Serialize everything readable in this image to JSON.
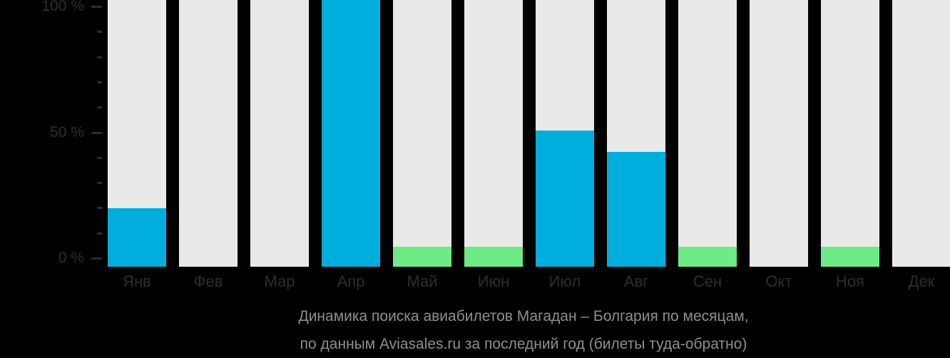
{
  "caption": {
    "line1": "Динамика поиска авиабилетов Магадан – Болгария по месяцам,",
    "line2": "по данным Aviasales.ru за последний год (билеты туда-обратно)"
  },
  "colors": {
    "background": "#000000",
    "column_bg": "#E9E9E9",
    "bar_blue": "#00AEDE",
    "bar_green": "#6DEB87",
    "axis_text": "#2D2D2D",
    "tick_mark": "#2D2D2D",
    "caption_text": "#8E8E8E"
  },
  "y_axis": {
    "tick_labels": [
      "100 %",
      "50 %",
      "0 %"
    ],
    "min": 0,
    "max": 100,
    "major_step": 50,
    "minor_step": 10
  },
  "chart_data": {
    "type": "bar",
    "title": "Динамика поиска авиабилетов Магадан – Болгария по месяцам, по данным Aviasales.ru за последний год (билеты туда-обратно)",
    "categories": [
      "Янв",
      "Фев",
      "Мар",
      "Апр",
      "Май",
      "Июн",
      "Июл",
      "Авг",
      "Сен",
      "Окт",
      "Ноя",
      "Дек"
    ],
    "values": [
      22,
      0,
      0,
      100,
      7.5,
      7.5,
      51,
      43,
      7.5,
      0,
      7.5,
      0
    ],
    "bar_colors": [
      "blue",
      null,
      null,
      "blue",
      "green",
      "green",
      "blue",
      "blue",
      "green",
      null,
      "green",
      null
    ],
    "xlabel": "",
    "ylabel": "",
    "ylim": [
      0,
      100
    ],
    "grid": false,
    "legend": null,
    "background_columns": true
  }
}
